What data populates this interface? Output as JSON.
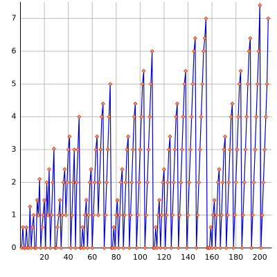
{
  "chart_data": {
    "type": "line",
    "x": [
      1,
      2,
      3,
      4,
      5,
      6,
      7,
      8,
      9,
      10,
      11,
      12,
      13,
      14,
      15,
      16,
      17,
      18,
      19,
      20,
      21,
      22,
      23,
      24,
      25,
      26,
      27,
      28,
      29,
      30,
      31,
      32,
      33,
      34,
      35,
      36,
      37,
      38,
      39,
      40,
      41,
      42,
      43,
      44,
      45,
      46,
      47,
      48,
      49,
      50,
      51,
      52,
      53,
      54,
      55,
      56,
      57,
      58,
      59,
      60,
      61,
      62,
      63,
      64,
      65,
      66,
      67,
      68,
      69,
      70,
      71,
      72,
      73,
      74,
      75,
      76,
      77,
      78,
      79,
      80,
      81,
      82,
      83,
      84,
      85,
      86,
      87,
      88,
      89,
      90,
      91,
      92,
      93,
      94,
      95,
      96,
      97,
      98,
      99,
      100,
      101,
      102,
      103,
      104,
      105,
      106,
      107,
      108,
      109,
      110,
      111,
      112,
      113,
      114,
      115,
      116,
      117,
      118,
      119,
      120,
      121,
      122,
      123,
      124,
      125,
      126,
      127,
      128,
      129,
      130,
      131,
      132,
      133,
      134,
      135,
      136,
      137,
      138,
      139,
      140,
      141,
      142,
      143,
      144,
      145,
      146,
      147,
      148,
      149,
      150,
      151,
      152,
      153,
      154,
      155,
      156,
      157,
      158,
      159,
      160,
      161,
      162,
      163,
      164,
      165,
      166,
      167,
      168,
      169,
      170,
      171,
      172,
      173,
      174,
      175,
      176,
      177,
      178,
      179,
      180,
      181,
      182,
      183,
      184,
      185,
      186,
      187,
      188,
      189,
      190,
      191,
      192,
      193,
      194,
      195,
      196,
      197,
      198,
      199,
      200,
      201,
      202,
      203,
      204,
      205,
      206,
      207
    ],
    "series": [
      {
        "color": "#0000cc",
        "marker_color": "#f4a460",
        "values": [
          0,
          0.63,
          0,
          0,
          0.63,
          0,
          0,
          1.26,
          0,
          0.63,
          1,
          0,
          0,
          1.46,
          1,
          2.1,
          0,
          0.63,
          1,
          1.46,
          0,
          2,
          1,
          2.4,
          0,
          1,
          2,
          3.03,
          0,
          0,
          0.63,
          1,
          1.46,
          0,
          1,
          2,
          2.4,
          1,
          2,
          3,
          3.4,
          0,
          1,
          2,
          3,
          0,
          2,
          3,
          4,
          0,
          0,
          0.63,
          0,
          1,
          1.46,
          0,
          1,
          2,
          2.4,
          0,
          1,
          2,
          3,
          3.4,
          1,
          2,
          3,
          4,
          4.4,
          0,
          1,
          2,
          3,
          4,
          5,
          0,
          0,
          0.63,
          0,
          1,
          1.46,
          0,
          1,
          2,
          2.4,
          0,
          1,
          2,
          3,
          3.4,
          0,
          1,
          2,
          3,
          4,
          4.4,
          0,
          1,
          2,
          3,
          4,
          5,
          5.4,
          0,
          1,
          2,
          3,
          4,
          5,
          6,
          0,
          0,
          0.63,
          0,
          1,
          1.46,
          0,
          1,
          2,
          2.4,
          0,
          1,
          2,
          3,
          3.4,
          0,
          1,
          2,
          3,
          4,
          4.4,
          0,
          1,
          2,
          3,
          4,
          5,
          5.4,
          0,
          1,
          2,
          3,
          4,
          5,
          6,
          6.4,
          0,
          1,
          2,
          3,
          4,
          5,
          6,
          6.4,
          7,
          0,
          0,
          0,
          0.63,
          0,
          1,
          1.46,
          0,
          1,
          2,
          2.4,
          0,
          1,
          2,
          3,
          3.4,
          0,
          1,
          2,
          3,
          4,
          4.4,
          0,
          1,
          2,
          3,
          4,
          5,
          5.4,
          0,
          1,
          2,
          3,
          4,
          5,
          6,
          6.4,
          0,
          1,
          2,
          3,
          4,
          5,
          6,
          7.4,
          0,
          1,
          2,
          3,
          4,
          5,
          7
        ]
      }
    ],
    "xlim": [
      0,
      210
    ],
    "ylim": [
      0,
      7.5
    ],
    "xticks": [
      20,
      40,
      60,
      80,
      100,
      120,
      140,
      160,
      180,
      200
    ],
    "yticks": [
      0,
      1,
      2,
      3,
      4,
      5,
      6,
      7
    ],
    "grid": true
  }
}
